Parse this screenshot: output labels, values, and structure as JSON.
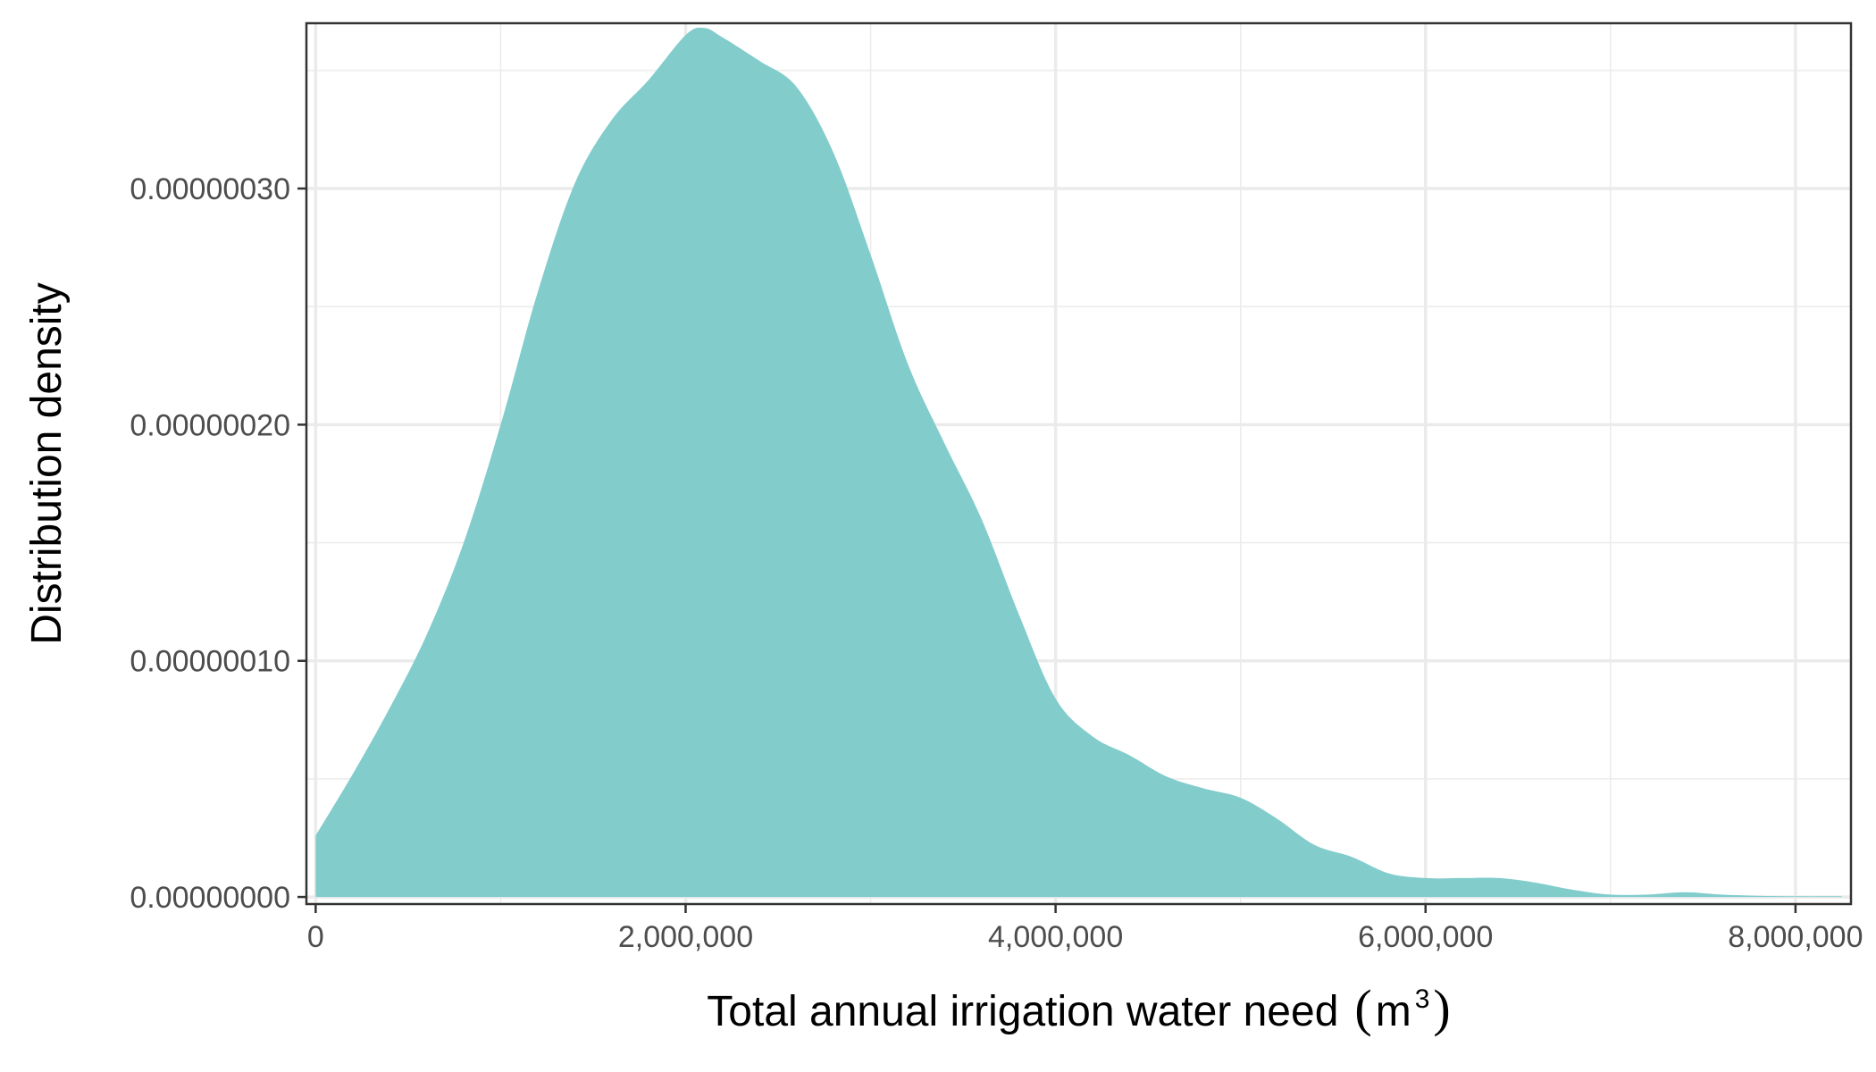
{
  "chart_data": {
    "type": "area",
    "xlabel": "Total annual irrigation water need",
    "xlabel_unit": "m",
    "xlabel_unit_exponent": "3",
    "ylabel": "Distribution density",
    "xlim": [
      -50000,
      8300000
    ],
    "ylim": [
      -3e-09,
      3.7e-07
    ],
    "x_ticks": [
      0,
      2000000,
      4000000,
      6000000,
      8000000
    ],
    "x_tick_labels": [
      "0",
      "2,000,000",
      "4,000,000",
      "6,000,000",
      "8,000,000"
    ],
    "y_ticks": [
      0,
      1e-07,
      2e-07,
      3e-07
    ],
    "y_tick_labels": [
      "0.00000000",
      "0.00000010",
      "0.00000020",
      "0.00000030"
    ],
    "grid": true,
    "fill_color": "#7fcbcb",
    "grid_color": "#ebebeb",
    "series": [
      {
        "x": [
          0,
          200000,
          400000,
          600000,
          800000,
          1000000,
          1200000,
          1400000,
          1600000,
          1800000,
          2000000,
          2100000,
          2200000,
          2400000,
          2600000,
          2800000,
          3000000,
          3200000,
          3400000,
          3600000,
          3800000,
          4000000,
          4200000,
          4400000,
          4600000,
          4800000,
          5000000,
          5200000,
          5400000,
          5600000,
          5800000,
          6000000,
          6200000,
          6400000,
          6600000,
          6800000,
          7000000,
          7200000,
          7400000,
          7600000,
          7800000,
          8000000,
          8250000
        ],
        "y": [
          2.6e-08,
          5.2e-08,
          8e-08,
          1.11e-07,
          1.5e-07,
          2e-07,
          2.56e-07,
          3.02e-07,
          3.29e-07,
          3.46e-07,
          3.65e-07,
          3.68e-07,
          3.64e-07,
          3.54e-07,
          3.43e-07,
          3.15e-07,
          2.72e-07,
          2.26e-07,
          1.92e-07,
          1.6e-07,
          1.2e-07,
          8.4e-08,
          6.8e-08,
          6e-08,
          5.1e-08,
          4.6e-08,
          4.2e-08,
          3.3e-08,
          2.2e-08,
          1.7e-08,
          1e-08,
          8e-09,
          8e-09,
          8e-09,
          6e-09,
          3e-09,
          1e-09,
          1e-09,
          2e-09,
          1e-09,
          5e-10,
          3e-10,
          3e-10
        ]
      }
    ]
  }
}
